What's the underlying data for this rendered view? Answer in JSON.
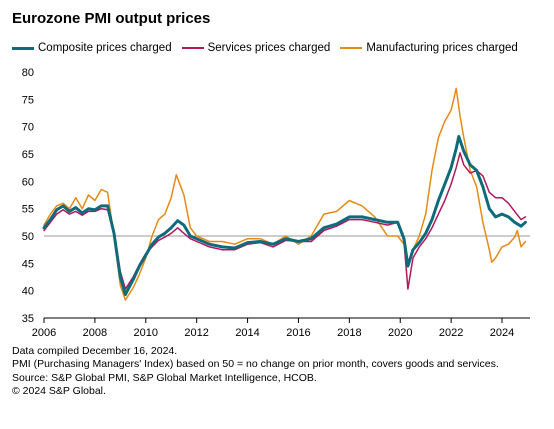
{
  "title": "Eurozone PMI output prices",
  "chart_data": {
    "type": "line",
    "title": "Eurozone PMI output prices",
    "xlabel": "",
    "ylabel": "",
    "xlim": [
      2006,
      2025.1
    ],
    "ylim": [
      35,
      80
    ],
    "yticks": [
      35,
      40,
      45,
      50,
      55,
      60,
      65,
      70,
      75,
      80
    ],
    "xticks": [
      2006,
      2008,
      2010,
      2012,
      2014,
      2016,
      2018,
      2020,
      2022,
      2024
    ],
    "reference_line": 50,
    "legend_position": "top",
    "series": [
      {
        "name": "Composite prices charged",
        "color": "#0e6b7a",
        "width": 3,
        "points": [
          [
            2006.0,
            51.5
          ],
          [
            2006.25,
            53
          ],
          [
            2006.5,
            54.8
          ],
          [
            2006.75,
            55.5
          ],
          [
            2007.0,
            54.5
          ],
          [
            2007.25,
            55.2
          ],
          [
            2007.5,
            54.2
          ],
          [
            2007.75,
            55
          ],
          [
            2008.0,
            54.8
          ],
          [
            2008.25,
            55.5
          ],
          [
            2008.5,
            55.5
          ],
          [
            2008.75,
            50.5
          ],
          [
            2009.0,
            42.5
          ],
          [
            2009.2,
            39.3
          ],
          [
            2009.5,
            42
          ],
          [
            2009.75,
            44.5
          ],
          [
            2010.0,
            46.5
          ],
          [
            2010.25,
            48.5
          ],
          [
            2010.5,
            49.8
          ],
          [
            2010.75,
            50.5
          ],
          [
            2011.0,
            51.5
          ],
          [
            2011.25,
            52.8
          ],
          [
            2011.5,
            52
          ],
          [
            2011.75,
            50
          ],
          [
            2012.0,
            49.5
          ],
          [
            2012.5,
            48.5
          ],
          [
            2013.0,
            48
          ],
          [
            2013.5,
            47.8
          ],
          [
            2014.0,
            48.8
          ],
          [
            2014.5,
            49
          ],
          [
            2015.0,
            48.5
          ],
          [
            2015.5,
            49.5
          ],
          [
            2016.0,
            49
          ],
          [
            2016.5,
            49.5
          ],
          [
            2017.0,
            51.5
          ],
          [
            2017.5,
            52.2
          ],
          [
            2018.0,
            53.5
          ],
          [
            2018.5,
            53.5
          ],
          [
            2019.0,
            53
          ],
          [
            2019.5,
            52.5
          ],
          [
            2019.9,
            52.5
          ],
          [
            2020.15,
            49.5
          ],
          [
            2020.3,
            44.5
          ],
          [
            2020.5,
            47.5
          ],
          [
            2020.75,
            48.8
          ],
          [
            2021.0,
            50.5
          ],
          [
            2021.25,
            53
          ],
          [
            2021.5,
            56.5
          ],
          [
            2021.75,
            59.5
          ],
          [
            2022.0,
            62.5
          ],
          [
            2022.2,
            66
          ],
          [
            2022.3,
            68.2
          ],
          [
            2022.5,
            65.5
          ],
          [
            2022.75,
            63
          ],
          [
            2023.0,
            62
          ],
          [
            2023.25,
            59
          ],
          [
            2023.5,
            55
          ],
          [
            2023.75,
            53.5
          ],
          [
            2024.0,
            54
          ],
          [
            2024.25,
            53.5
          ],
          [
            2024.5,
            52.5
          ],
          [
            2024.75,
            51.8
          ],
          [
            2024.92,
            52.5
          ]
        ]
      },
      {
        "name": "Services prices charged",
        "color": "#b0175e",
        "width": 1.5,
        "points": [
          [
            2006.0,
            51
          ],
          [
            2006.25,
            52.5
          ],
          [
            2006.5,
            54
          ],
          [
            2006.75,
            54.8
          ],
          [
            2007.0,
            54
          ],
          [
            2007.25,
            54.5
          ],
          [
            2007.5,
            53.8
          ],
          [
            2007.75,
            54.5
          ],
          [
            2008.0,
            54.5
          ],
          [
            2008.25,
            55
          ],
          [
            2008.5,
            54.8
          ],
          [
            2008.75,
            50.5
          ],
          [
            2009.0,
            43.5
          ],
          [
            2009.2,
            40.3
          ],
          [
            2009.5,
            42.5
          ],
          [
            2009.75,
            44.8
          ],
          [
            2010.0,
            46.8
          ],
          [
            2010.25,
            48
          ],
          [
            2010.5,
            49.2
          ],
          [
            2010.75,
            49.8
          ],
          [
            2011.0,
            50.5
          ],
          [
            2011.25,
            51.5
          ],
          [
            2011.5,
            50.5
          ],
          [
            2011.75,
            49.5
          ],
          [
            2012.0,
            49
          ],
          [
            2012.5,
            48
          ],
          [
            2013.0,
            47.5
          ],
          [
            2013.5,
            47.5
          ],
          [
            2014.0,
            48.5
          ],
          [
            2014.5,
            48.8
          ],
          [
            2015.0,
            48
          ],
          [
            2015.5,
            49.2
          ],
          [
            2016.0,
            49
          ],
          [
            2016.5,
            49
          ],
          [
            2017.0,
            51
          ],
          [
            2017.5,
            51.8
          ],
          [
            2018.0,
            53
          ],
          [
            2018.5,
            53
          ],
          [
            2019.0,
            52.5
          ],
          [
            2019.5,
            52
          ],
          [
            2019.9,
            52.5
          ],
          [
            2020.15,
            49
          ],
          [
            2020.3,
            40.3
          ],
          [
            2020.5,
            46
          ],
          [
            2020.75,
            48
          ],
          [
            2021.0,
            49.5
          ],
          [
            2021.25,
            51.5
          ],
          [
            2021.5,
            54
          ],
          [
            2021.75,
            56.5
          ],
          [
            2022.0,
            59.5
          ],
          [
            2022.2,
            62.5
          ],
          [
            2022.35,
            65.2
          ],
          [
            2022.5,
            63
          ],
          [
            2022.75,
            61.5
          ],
          [
            2023.0,
            62
          ],
          [
            2023.25,
            61
          ],
          [
            2023.5,
            58
          ],
          [
            2023.75,
            57
          ],
          [
            2024.0,
            57
          ],
          [
            2024.25,
            56
          ],
          [
            2024.5,
            54.5
          ],
          [
            2024.75,
            53
          ],
          [
            2024.92,
            53.5
          ]
        ]
      },
      {
        "name": "Manufacturing prices charged",
        "color": "#e58a16",
        "width": 1.5,
        "points": [
          [
            2006.0,
            52
          ],
          [
            2006.25,
            54
          ],
          [
            2006.5,
            55.5
          ],
          [
            2006.75,
            56
          ],
          [
            2007.0,
            55
          ],
          [
            2007.25,
            57
          ],
          [
            2007.5,
            55
          ],
          [
            2007.75,
            57.5
          ],
          [
            2008.0,
            56.5
          ],
          [
            2008.25,
            58.5
          ],
          [
            2008.5,
            58
          ],
          [
            2008.75,
            50
          ],
          [
            2009.0,
            41
          ],
          [
            2009.2,
            38.3
          ],
          [
            2009.5,
            40.5
          ],
          [
            2009.75,
            43
          ],
          [
            2010.0,
            46
          ],
          [
            2010.25,
            50
          ],
          [
            2010.5,
            53
          ],
          [
            2010.75,
            54
          ],
          [
            2011.0,
            57
          ],
          [
            2011.2,
            61.2
          ],
          [
            2011.5,
            57.5
          ],
          [
            2011.75,
            51.5
          ],
          [
            2012.0,
            50
          ],
          [
            2012.5,
            49
          ],
          [
            2013.0,
            49
          ],
          [
            2013.5,
            48.5
          ],
          [
            2014.0,
            49.5
          ],
          [
            2014.5,
            49.5
          ],
          [
            2015.0,
            48.5
          ],
          [
            2015.5,
            50
          ],
          [
            2016.0,
            48.5
          ],
          [
            2016.5,
            50
          ],
          [
            2017.0,
            54
          ],
          [
            2017.5,
            54.5
          ],
          [
            2018.0,
            56.5
          ],
          [
            2018.5,
            55.5
          ],
          [
            2019.0,
            53.5
          ],
          [
            2019.5,
            50
          ],
          [
            2019.9,
            50
          ],
          [
            2020.15,
            48.5
          ],
          [
            2020.3,
            44.5
          ],
          [
            2020.5,
            47.5
          ],
          [
            2020.75,
            50
          ],
          [
            2021.0,
            54
          ],
          [
            2021.25,
            62
          ],
          [
            2021.5,
            68
          ],
          [
            2021.75,
            71
          ],
          [
            2022.0,
            73
          ],
          [
            2022.2,
            77
          ],
          [
            2022.35,
            72
          ],
          [
            2022.5,
            68
          ],
          [
            2022.75,
            62
          ],
          [
            2023.0,
            59
          ],
          [
            2023.25,
            52.5
          ],
          [
            2023.5,
            47.5
          ],
          [
            2023.6,
            45.2
          ],
          [
            2023.75,
            46
          ],
          [
            2024.0,
            48
          ],
          [
            2024.25,
            48.5
          ],
          [
            2024.5,
            49.8
          ],
          [
            2024.6,
            51
          ],
          [
            2024.75,
            48
          ],
          [
            2024.92,
            49
          ]
        ]
      }
    ]
  },
  "notes": [
    "Data compiled December 16, 2024.",
    "PMI (Purchasing Managers' Index) based on 50 = no change on prior month, covers goods and services.",
    "Source: S&P Global PMI, S&P Global Market Intelligence, HCOB.",
    "© 2024 S&P Global."
  ]
}
